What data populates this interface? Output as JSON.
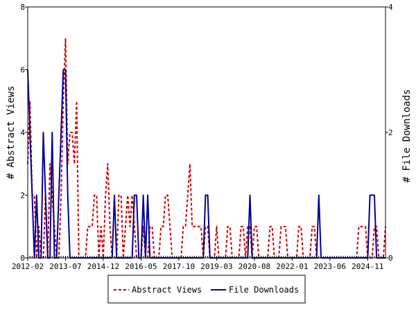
{
  "chart_data": {
    "type": "line",
    "title": "",
    "xlabel": "",
    "y_left_label": "# Abstract Views",
    "y_right_label": "# File Downloads",
    "x_tick_labels": [
      "2012-02",
      "2013-07",
      "2014-12",
      "2016-05",
      "2017-10",
      "2019-03",
      "2020-08",
      "2022-01",
      "2023-06",
      "2024-11"
    ],
    "x_tick_month_index": [
      0,
      17,
      34,
      51,
      68,
      85,
      102,
      119,
      136,
      153
    ],
    "x_range_months": [
      0,
      161
    ],
    "y_left_ticks": [
      "0",
      "2",
      "4",
      "6",
      "8"
    ],
    "y_left_range": [
      0,
      8
    ],
    "y_right_ticks": [
      "0",
      "2",
      "4"
    ],
    "y_right_range": [
      0,
      4
    ],
    "grid": false,
    "legend_position": "bottom",
    "colors": {
      "abstract_views": "#cc0000",
      "file_downloads": "#000099"
    },
    "series": [
      {
        "name": "Abstract Views",
        "axis": "left",
        "style": "dashed",
        "values": [
          3,
          5,
          2,
          2,
          0,
          1,
          0,
          0,
          2,
          0,
          3,
          2,
          1,
          0,
          0,
          2,
          5,
          7,
          3,
          4,
          4,
          3,
          5,
          0,
          0,
          0,
          0,
          1,
          1,
          1,
          2,
          2,
          0,
          1,
          0,
          2,
          3,
          1,
          0,
          0,
          0,
          2,
          2,
          0,
          1,
          2,
          1,
          2,
          1,
          0,
          0,
          0,
          1,
          0,
          0,
          1,
          1,
          0,
          0,
          0,
          1,
          1,
          2,
          2,
          1,
          0,
          0,
          0,
          0,
          0,
          1,
          1,
          2,
          3,
          1,
          1,
          1,
          1,
          1,
          0,
          1,
          1,
          0,
          0,
          0,
          1,
          0,
          0,
          0,
          0,
          1,
          1,
          0,
          0,
          0,
          0,
          1,
          1,
          0,
          1,
          1,
          0,
          1,
          1,
          0,
          0,
          0,
          0,
          0,
          1,
          1,
          0,
          0,
          0,
          1,
          1,
          1,
          0,
          0,
          0,
          0,
          0,
          1,
          1,
          0,
          0,
          0,
          0,
          1,
          1,
          0,
          0,
          0,
          0,
          0,
          0,
          0,
          0,
          0,
          0,
          0,
          0,
          0,
          0,
          0,
          0,
          0,
          0,
          0,
          1,
          1,
          1,
          1,
          0,
          0,
          0,
          1,
          1,
          0,
          0,
          0,
          1
        ]
      },
      {
        "name": "File Downloads",
        "axis": "right",
        "style": "solid",
        "values": [
          3,
          2,
          1,
          0,
          1,
          0,
          0,
          2,
          1,
          0,
          0,
          2,
          0,
          0,
          1,
          2,
          3,
          3,
          1,
          0,
          0,
          0,
          0,
          0,
          0,
          0,
          0,
          0,
          0,
          0,
          0,
          0,
          0,
          0,
          0,
          0,
          0,
          0,
          0,
          1,
          0,
          0,
          0,
          0,
          0,
          0,
          0,
          0,
          1,
          1,
          0,
          0,
          1,
          0,
          1,
          0,
          0,
          0,
          0,
          0,
          0,
          0,
          0,
          0,
          0,
          0,
          0,
          0,
          0,
          0,
          0,
          0,
          0,
          0,
          0,
          0,
          0,
          0,
          0,
          0,
          1,
          1,
          0,
          0,
          0,
          0,
          0,
          0,
          0,
          0,
          0,
          0,
          0,
          0,
          0,
          0,
          0,
          0,
          0,
          0,
          1,
          0,
          0,
          0,
          0,
          0,
          0,
          0,
          0,
          0,
          0,
          0,
          0,
          0,
          0,
          0,
          0,
          0,
          0,
          0,
          0,
          0,
          0,
          0,
          0,
          0,
          0,
          0,
          0,
          0,
          0,
          1,
          0,
          0,
          0,
          0,
          0,
          0,
          0,
          0,
          0,
          0,
          0,
          0,
          0,
          0,
          0,
          0,
          0,
          0,
          0,
          0,
          0,
          0,
          1,
          1,
          1,
          0,
          0,
          0,
          0,
          0
        ]
      }
    ]
  }
}
